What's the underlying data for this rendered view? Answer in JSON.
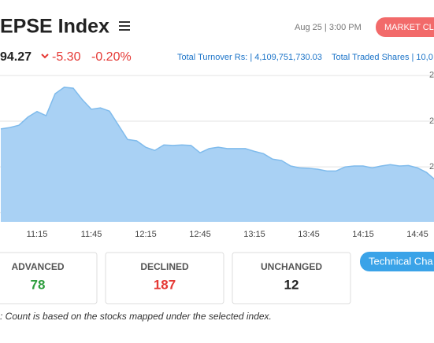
{
  "header": {
    "title": "EPSE Index",
    "datetime": "Aug 25 | 3:00 PM",
    "status": "MARKET CLO",
    "index_value": "94.27",
    "change": "-5.30",
    "change_percent": "-0.20%",
    "turnover": "Total Turnover Rs: | 4,109,751,730.03",
    "traded_shares": "Total Traded Shares | 10,0"
  },
  "chart_data": {
    "type": "area",
    "categories": [
      null,
      null,
      null,
      null,
      "11:15",
      null,
      null,
      null,
      null,
      null,
      "11:45",
      null,
      null,
      null,
      null,
      null,
      "12:15",
      null,
      null,
      null,
      null,
      null,
      "12:45",
      null,
      null,
      null,
      null,
      null,
      "13:15",
      null,
      null,
      null,
      null,
      null,
      "13:45",
      null,
      null,
      null,
      null,
      null,
      "14:15",
      null,
      null,
      null,
      null,
      null,
      "14:45",
      null,
      null
    ],
    "values": [
      2108.3,
      2108.6,
      2109.1,
      2110.9,
      2112.1,
      2111.2,
      2116.0,
      2117.4,
      2117.2,
      2114.7,
      2112.6,
      2112.9,
      2112.2,
      2109.1,
      2106.0,
      2105.7,
      2104.3,
      2103.6,
      2104.8,
      2104.7,
      2104.8,
      2104.7,
      2103.1,
      2104.0,
      2104.3,
      2104.0,
      2104.0,
      2104.0,
      2103.4,
      2102.9,
      2101.7,
      2101.4,
      2100.2,
      2099.8,
      2099.7,
      2099.5,
      2099.1,
      2099.1,
      2100.0,
      2100.2,
      2100.2,
      2099.8,
      2100.2,
      2100.5,
      2100.2,
      2100.3,
      2099.8,
      2098.8,
      2097.1
    ],
    "color": "#7fbbec",
    "fill": "#a9d1f4",
    "ylim": [
      2088,
      2121
    ],
    "yticks": [
      {
        "value": 2120,
        "label": "2"
      },
      {
        "value": 2110,
        "label": "2"
      },
      {
        "value": 2100,
        "label": "2"
      },
      {
        "value": 2090,
        "label": "2"
      }
    ],
    "grid": true
  },
  "stats": [
    {
      "label": "ADVANCED",
      "value": "78"
    },
    {
      "label": "DECLINED",
      "value": "187"
    },
    {
      "label": "UNCHANGED",
      "value": "12"
    }
  ],
  "button": "Technical Cha",
  "note": ": Count is based on the stocks mapped under the selected index."
}
